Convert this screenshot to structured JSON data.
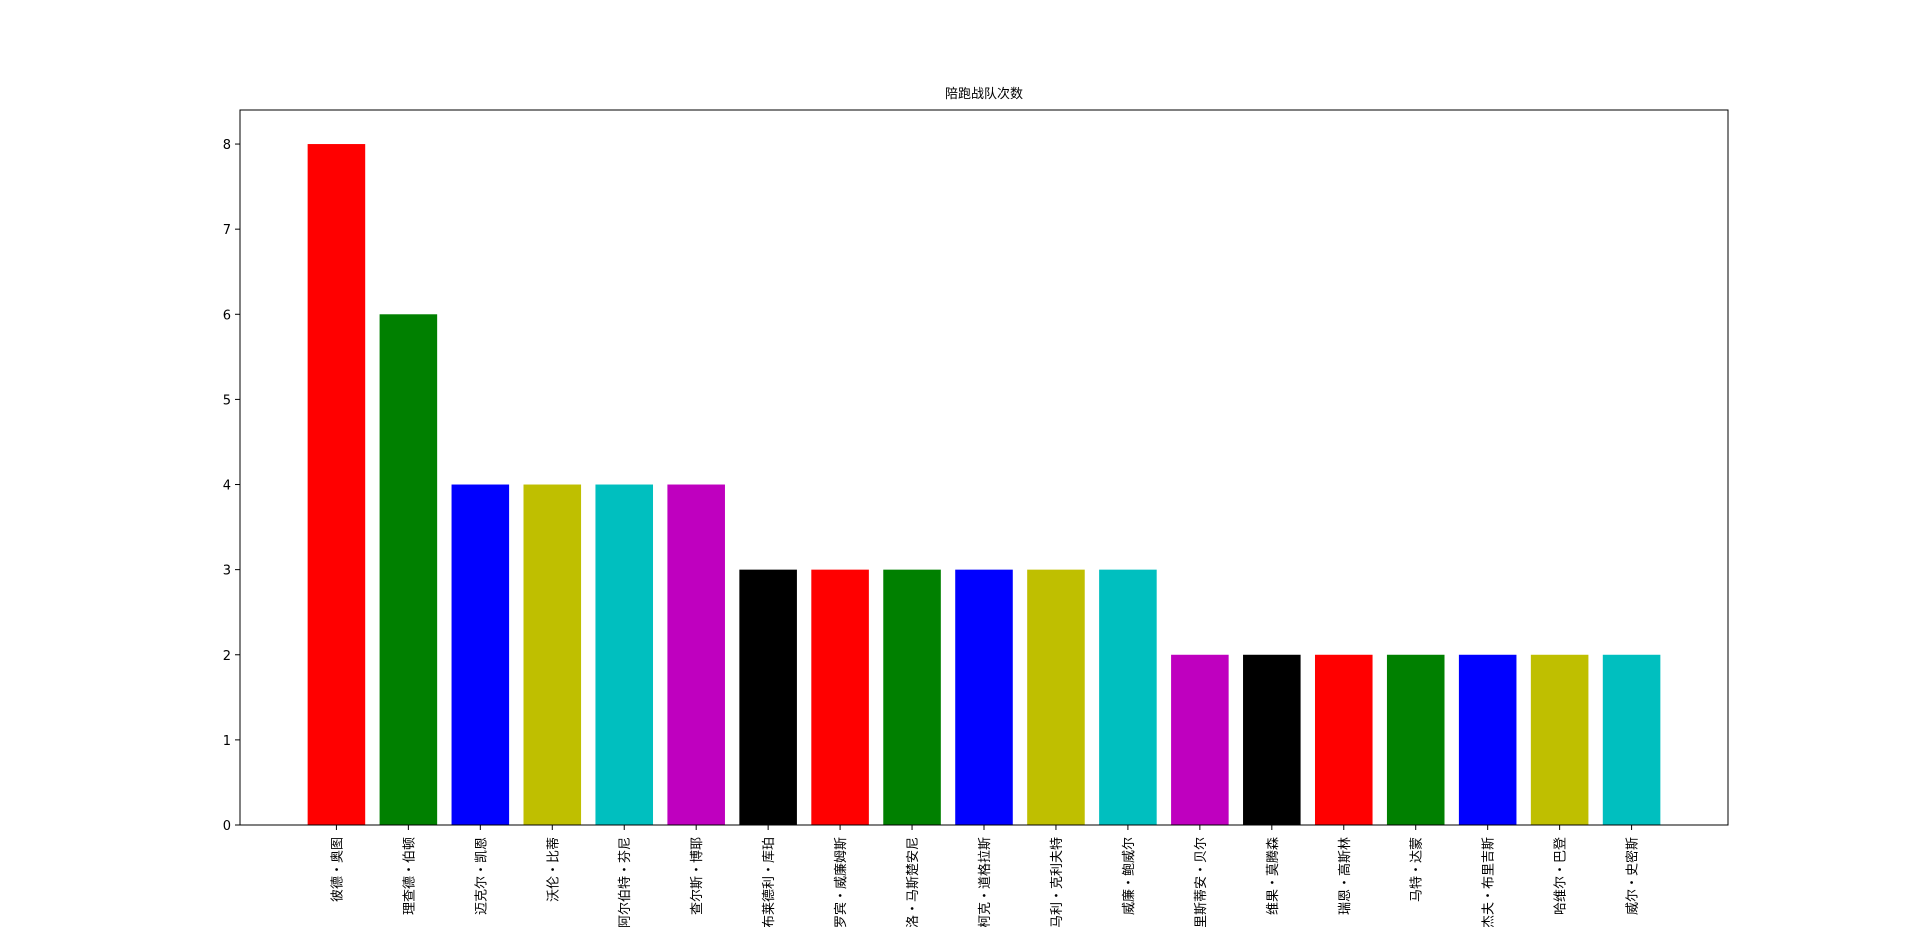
{
  "chart_data": {
    "type": "bar",
    "title": "陪跑战队次数",
    "categories": [
      "彼德・奥图",
      "理查德・伯顿",
      "迈克尔・凯恩",
      "沃伦・比蒂",
      "阿尔伯特・芬尼",
      "查尔斯・博耶",
      "布莱德利・库珀",
      "罗宾・威廉姆斯",
      "马塞洛・马斯楚安尼",
      "柯克・道格拉斯",
      "蒙哥马利・克利夫特",
      "威廉・鲍威尔",
      "克里斯蒂安・贝尔",
      "维果・莫腾森",
      "瑞恩・高斯林",
      "马特・达蒙",
      "杰夫・布里吉斯",
      "哈维尔・巴登",
      "威尔・史密斯"
    ],
    "values": [
      8,
      6,
      4,
      4,
      4,
      4,
      3,
      3,
      3,
      3,
      3,
      3,
      2,
      2,
      2,
      2,
      2,
      2,
      2
    ],
    "colors": [
      "#ff0000",
      "#008000",
      "#0000ff",
      "#bfbf00",
      "#00bfbf",
      "#bf00bf",
      "#000000",
      "#ff0000",
      "#008000",
      "#0000ff",
      "#bfbf00",
      "#00bfbf",
      "#bf00bf",
      "#000000",
      "#ff0000",
      "#008000",
      "#0000ff",
      "#bfbf00",
      "#00bfbf"
    ],
    "category_label_color": "#0000ff",
    "ylim": [
      0,
      8.4
    ],
    "yticks": [
      0,
      1,
      2,
      3,
      4,
      5,
      6,
      7,
      8
    ],
    "grid": false
  }
}
